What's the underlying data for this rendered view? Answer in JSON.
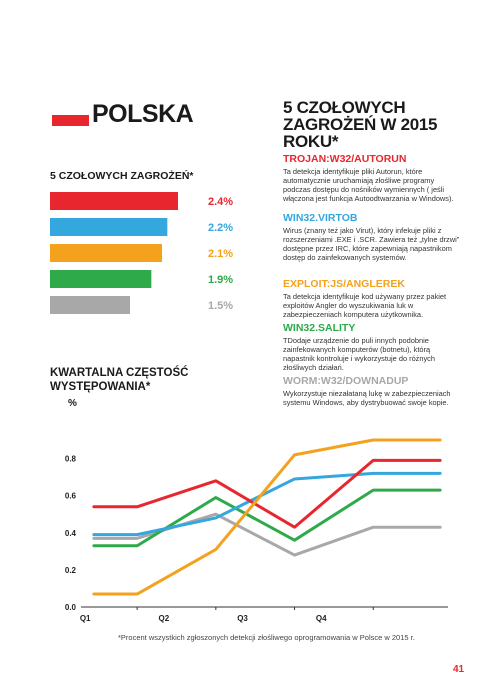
{
  "country": "POLSKA",
  "flag_color": "#e8262d",
  "bars": {
    "title": "5 CZOŁOWYCH ZAGROŻEŃ*",
    "items": [
      {
        "value": 2.4,
        "label": "2.4%",
        "color": "#e8262d"
      },
      {
        "value": 2.2,
        "label": "2.2%",
        "color": "#34a7de"
      },
      {
        "value": 2.1,
        "label": "2.1%",
        "color": "#f4a21e"
      },
      {
        "value": 1.9,
        "label": "1.9%",
        "color": "#2eaa4a"
      },
      {
        "value": 1.5,
        "label": "1.5%",
        "color": "#a8a8a8"
      }
    ]
  },
  "frequency_title": "KWARTALNA CZĘSTOŚĆ WYSTĘPOWANIA*",
  "percent_label": "%",
  "chart_data": {
    "type": "line",
    "categories": [
      "Q1",
      "Q2",
      "Q3",
      "Q4"
    ],
    "x": [
      1,
      2,
      3,
      4
    ],
    "xlim": [
      0.35,
      4.95
    ],
    "ylim": [
      0,
      0.9
    ],
    "yticks": [
      "0.0",
      "0.2",
      "0.4",
      "0.6",
      "0.8"
    ],
    "ytick_values": [
      0,
      0.2,
      0.4,
      0.6,
      0.8
    ],
    "series": [
      {
        "color": "#a8a8a8",
        "values": [
          0.37,
          0.5,
          0.28,
          0.43
        ]
      },
      {
        "color": "#2eaa4a",
        "values": [
          0.33,
          0.59,
          0.36,
          0.63
        ]
      },
      {
        "color": "#34a7de",
        "values": [
          0.39,
          0.48,
          0.69,
          0.72
        ]
      },
      {
        "color": "#e8262d",
        "values": [
          0.54,
          0.68,
          0.43,
          0.79
        ]
      },
      {
        "color": "#f4a21e",
        "values": [
          0.07,
          0.31,
          0.82,
          0.9
        ]
      }
    ]
  },
  "right_title": "5 CZOŁOWYCH ZAGROŻEŃ W 2015 ROKU*",
  "threats": [
    {
      "name": "TROJAN:W32/AUTORUN",
      "color": "#e8262d",
      "desc": "Ta detekcja identyfikuje pliki Autorun, które automatycznie uruchamiają złośliwe programy podczas dostępu do nośników wymiennych ( jeśli włączona jest funkcja Autoodtwarzania w Windows)."
    },
    {
      "name": "WIN32.VIRTOB",
      "color": "#34a7de",
      "desc": "Wirus (znany też jako Virut), który infekuje pliki z rozszerzeniami .EXE i .SCR. Zawiera też „tylne drzwi” dostępne przez IRC, które zapewniają napastnikom dostęp do zainfekowanych systemów."
    },
    {
      "name": "EXPLOIT:JS/ANGLEREK",
      "color": "#f4a21e",
      "desc": "Ta detekcja identyfikuje kod używany przez pakiet exploitów Angler do wyszukiwania luk w zabezpieczeniach komputera użytkownika."
    },
    {
      "name": "WIN32.SALITY",
      "color": "#2eaa4a",
      "desc": "TDodaje urządzenie do puli innych podobnie zainfekowanych komputerów (botnetu), którą napastnik kontroluje i wykorzystuje do różnych złośliwych działań."
    },
    {
      "name": "WORM:W32/DOWNADUP",
      "color": "#a8a8a8",
      "desc": "Wykorzystuje niezałataną lukę w zabezpieczeniach systemu Windows, aby dystrybuować swoje kopie."
    }
  ],
  "footnote": "*Procent wszystkich zgłoszonych detekcji złośliwego oprogramowania w Polsce w 2015 r.",
  "page_number": "41"
}
